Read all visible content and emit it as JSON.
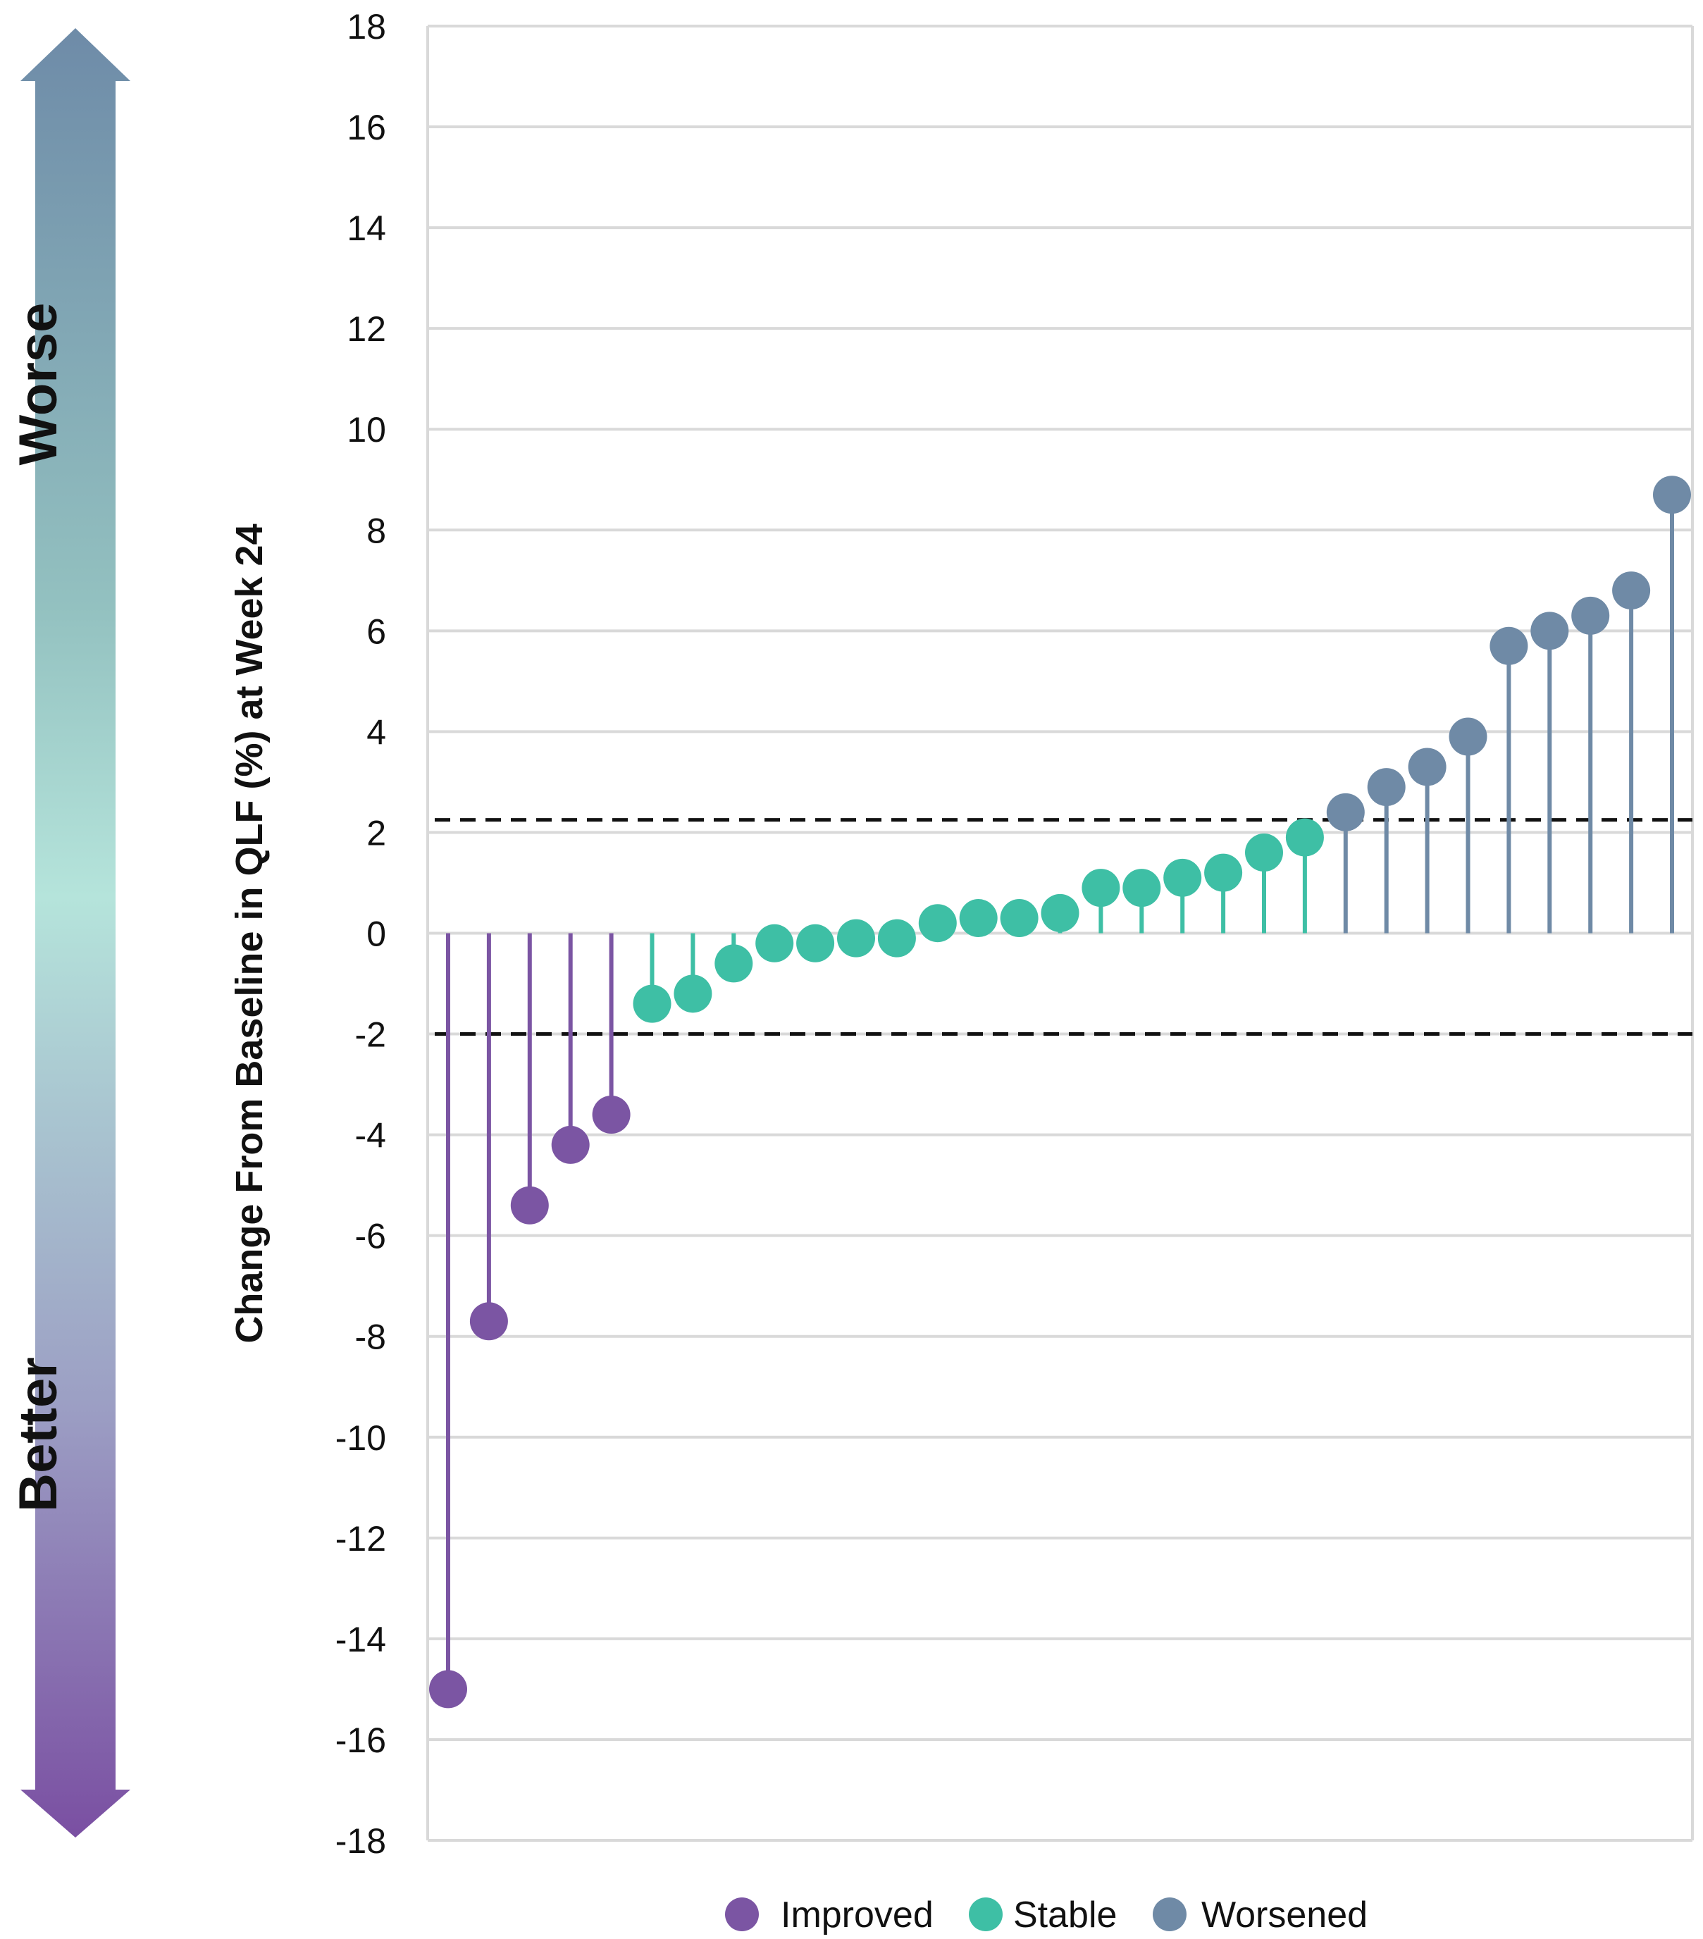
{
  "chart_data": {
    "type": "lollipop",
    "ylabel": "Change From Baseline in QLF (%) at Week 24",
    "ylim": [
      -18,
      18
    ],
    "yticks": [
      18,
      16,
      14,
      12,
      10,
      8,
      6,
      4,
      2,
      0,
      -2,
      -4,
      -6,
      -8,
      -10,
      -12,
      -14,
      -16,
      -18
    ],
    "grid": true,
    "thresholds": [
      2.25,
      -2.0
    ],
    "side_labels": {
      "top": "Worse",
      "bottom": "Better"
    },
    "categories": {
      "Improved": "#7B55A3",
      "Stable": "#3EBFA5",
      "Worsened": "#6F8AA6"
    },
    "legend": [
      "Improved",
      "Stable",
      "Worsened"
    ],
    "legend_position": "bottom",
    "points": [
      {
        "y": -15.0,
        "category": "Improved"
      },
      {
        "y": -7.7,
        "category": "Improved"
      },
      {
        "y": -5.4,
        "category": "Improved"
      },
      {
        "y": -4.2,
        "category": "Improved"
      },
      {
        "y": -3.6,
        "category": "Improved"
      },
      {
        "y": -1.4,
        "category": "Stable"
      },
      {
        "y": -1.2,
        "category": "Stable"
      },
      {
        "y": -0.6,
        "category": "Stable"
      },
      {
        "y": -0.2,
        "category": "Stable"
      },
      {
        "y": -0.2,
        "category": "Stable"
      },
      {
        "y": -0.1,
        "category": "Stable"
      },
      {
        "y": -0.1,
        "category": "Stable"
      },
      {
        "y": 0.2,
        "category": "Stable"
      },
      {
        "y": 0.3,
        "category": "Stable"
      },
      {
        "y": 0.3,
        "category": "Stable"
      },
      {
        "y": 0.4,
        "category": "Stable"
      },
      {
        "y": 0.9,
        "category": "Stable"
      },
      {
        "y": 0.9,
        "category": "Stable"
      },
      {
        "y": 1.1,
        "category": "Stable"
      },
      {
        "y": 1.2,
        "category": "Stable"
      },
      {
        "y": 1.6,
        "category": "Stable"
      },
      {
        "y": 1.9,
        "category": "Stable"
      },
      {
        "y": 2.4,
        "category": "Worsened"
      },
      {
        "y": 2.9,
        "category": "Worsened"
      },
      {
        "y": 3.3,
        "category": "Worsened"
      },
      {
        "y": 3.9,
        "category": "Worsened"
      },
      {
        "y": 5.7,
        "category": "Worsened"
      },
      {
        "y": 6.0,
        "category": "Worsened"
      },
      {
        "y": 6.3,
        "category": "Worsened"
      },
      {
        "y": 6.8,
        "category": "Worsened"
      },
      {
        "y": 8.7,
        "category": "Worsened"
      }
    ]
  }
}
